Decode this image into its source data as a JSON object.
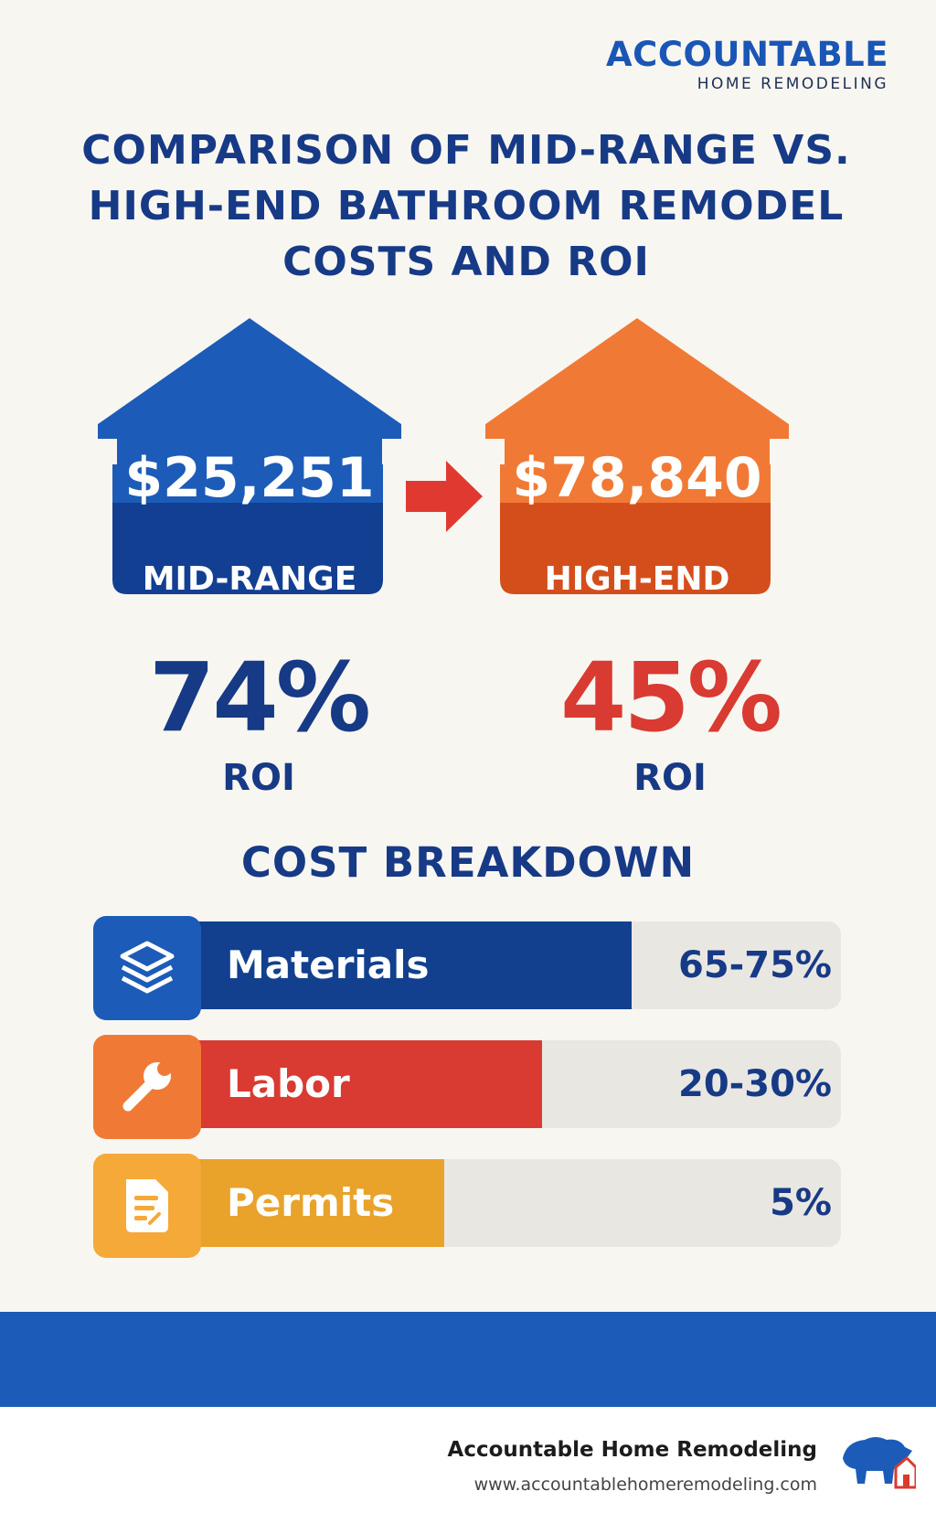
{
  "brand": {
    "name": "ACCOUNTABLE",
    "sub": "HOME REMODELING"
  },
  "title": "COMPARISON OF MID-RANGE VS. HIGH-END BATHROOM REMODEL COSTS AND ROI",
  "tiers": [
    {
      "price": "$25,251",
      "label": "MID-RANGE",
      "roi_pct": "74%",
      "roi_label": "ROI",
      "color": "#1c5cb8",
      "dark": "#123f92"
    },
    {
      "price": "$78,840",
      "label": "HIGH-END",
      "roi_pct": "45%",
      "roi_label": "ROI",
      "color": "#f07a35",
      "dark": "#d44e1c"
    }
  ],
  "breakdown": {
    "title": "COST BREAKDOWN",
    "items": [
      {
        "label": "Materials",
        "pct": "65-75%",
        "icon": "layers-icon",
        "fill": 0.72,
        "color": "#12408e",
        "icon_color": "#1c5cb8"
      },
      {
        "label": "Labor",
        "pct": "20-30%",
        "icon": "wrench-icon",
        "fill": 0.6,
        "color": "#d93a31",
        "icon_color": "#f07a35"
      },
      {
        "label": "Permits",
        "pct": "5%",
        "icon": "document-icon",
        "fill": 0.47,
        "color": "#e9a22a",
        "icon_color": "#f5a938"
      }
    ]
  },
  "footer": {
    "name": "Accountable Home Remodeling",
    "url": "www.accountablehomeremodeling.com"
  },
  "colors": {
    "navy": "#173a86",
    "red": "#d93a31",
    "background": "#f8f6f1"
  }
}
